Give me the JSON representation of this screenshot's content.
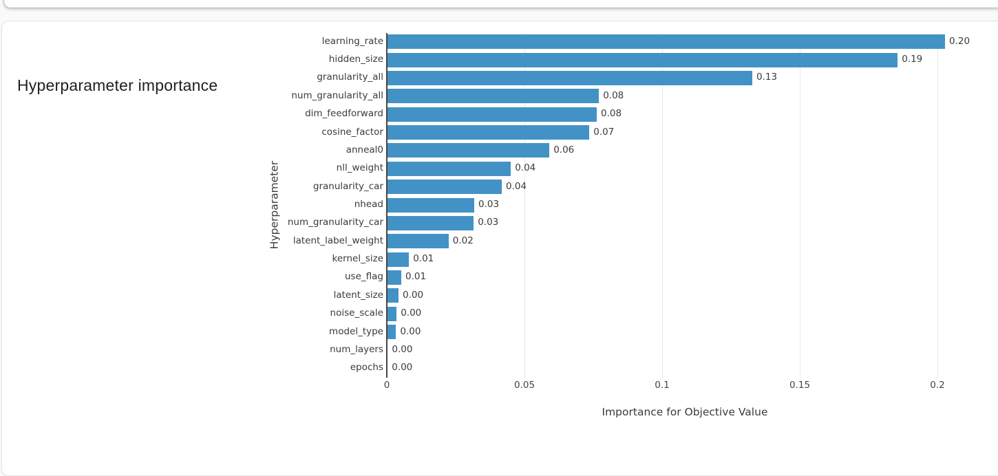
{
  "card": {
    "title": "Hyperparameter importance"
  },
  "chart_data": {
    "type": "bar",
    "orientation": "horizontal",
    "title": "Hyperparameter importance",
    "xlabel": "Importance for Objective Value",
    "ylabel": "Hyperparameter",
    "categories": [
      "learning_rate",
      "hidden_size",
      "granularity_all",
      "num_granularity_all",
      "dim_feedforward",
      "cosine_factor",
      "anneal0",
      "nll_weight",
      "granularity_car",
      "nhead",
      "num_granularity_car",
      "latent_label_weight",
      "kernel_size",
      "use_flag",
      "latent_size",
      "noise_scale",
      "model_type",
      "num_layers",
      "epochs"
    ],
    "values": [
      0.2025,
      0.1853,
      0.1325,
      0.0768,
      0.076,
      0.0733,
      0.0588,
      0.0448,
      0.0415,
      0.0315,
      0.0313,
      0.0222,
      0.0078,
      0.005,
      0.004,
      0.0033,
      0.0031,
      0.0001,
      5e-05
    ],
    "value_labels": [
      "0.20",
      "0.19",
      "0.13",
      "0.08",
      "0.08",
      "0.07",
      "0.06",
      "0.04",
      "0.04",
      "0.03",
      "0.03",
      "0.02",
      "0.01",
      "0.01",
      "0.00",
      "0.00",
      "0.00",
      "0.00",
      "0.00"
    ],
    "x_ticks": [
      0,
      0.05,
      0.1,
      0.15,
      0.2
    ],
    "x_tick_labels": [
      "0",
      "0.05",
      "0.1",
      "0.15",
      "0.2"
    ],
    "xlim": [
      0,
      0.22
    ],
    "grid": true,
    "legend": "none",
    "bar_color": "#4292c6",
    "zero_line_color": "#444444",
    "grid_color": "#e8e8e8"
  }
}
